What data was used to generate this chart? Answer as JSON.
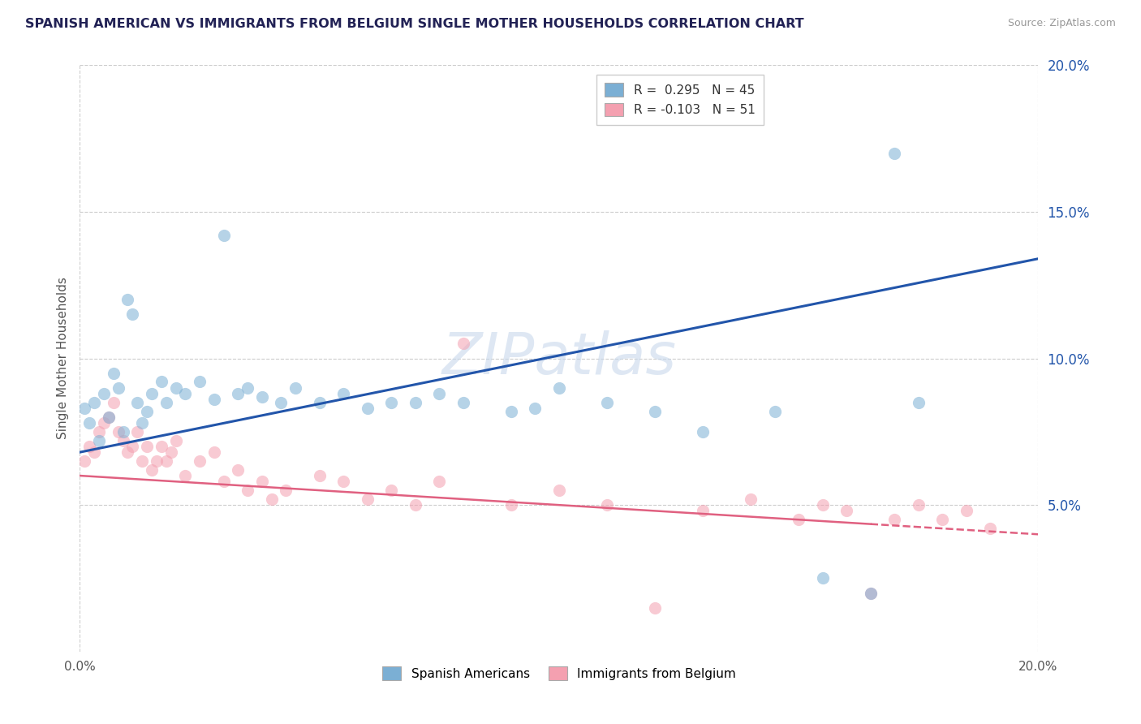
{
  "title": "SPANISH AMERICAN VS IMMIGRANTS FROM BELGIUM SINGLE MOTHER HOUSEHOLDS CORRELATION CHART",
  "source": "Source: ZipAtlas.com",
  "ylabel": "Single Mother Households",
  "watermark": "ZIPatlas",
  "xlim": [
    0.0,
    0.2
  ],
  "ylim": [
    0.0,
    0.2
  ],
  "yticks": [
    0.05,
    0.1,
    0.15,
    0.2
  ],
  "ytick_labels": [
    "5.0%",
    "10.0%",
    "15.0%",
    "20.0%"
  ],
  "xtick_labels": [
    "0.0%",
    "20.0%"
  ],
  "legend_r1": "R =  0.295",
  "legend_n1": "N = 45",
  "legend_r2": "R = -0.103",
  "legend_n2": "N = 51",
  "color_blue": "#7BAFD4",
  "color_pink": "#F4A0B0",
  "color_blue_line": "#2255AA",
  "color_pink_line": "#E06080",
  "blue_line_x0": 0.0,
  "blue_line_y0": 0.068,
  "blue_line_x1": 0.2,
  "blue_line_y1": 0.134,
  "pink_line_x0": 0.0,
  "pink_line_y0": 0.06,
  "pink_line_x1": 0.2,
  "pink_line_y1": 0.04,
  "sa_x": [
    0.001,
    0.002,
    0.003,
    0.004,
    0.005,
    0.006,
    0.007,
    0.008,
    0.009,
    0.01,
    0.011,
    0.012,
    0.013,
    0.014,
    0.015,
    0.017,
    0.018,
    0.02,
    0.022,
    0.025,
    0.028,
    0.03,
    0.033,
    0.035,
    0.038,
    0.042,
    0.045,
    0.05,
    0.055,
    0.06,
    0.065,
    0.07,
    0.075,
    0.08,
    0.09,
    0.095,
    0.1,
    0.11,
    0.12,
    0.13,
    0.145,
    0.155,
    0.165,
    0.17,
    0.175
  ],
  "sa_y": [
    0.083,
    0.078,
    0.085,
    0.072,
    0.088,
    0.08,
    0.095,
    0.09,
    0.075,
    0.12,
    0.115,
    0.085,
    0.078,
    0.082,
    0.088,
    0.092,
    0.085,
    0.09,
    0.088,
    0.092,
    0.086,
    0.142,
    0.088,
    0.09,
    0.087,
    0.085,
    0.09,
    0.085,
    0.088,
    0.083,
    0.085,
    0.085,
    0.088,
    0.085,
    0.082,
    0.083,
    0.09,
    0.085,
    0.082,
    0.075,
    0.082,
    0.025,
    0.02,
    0.17,
    0.085
  ],
  "bel_x": [
    0.001,
    0.002,
    0.003,
    0.004,
    0.005,
    0.006,
    0.007,
    0.008,
    0.009,
    0.01,
    0.011,
    0.012,
    0.013,
    0.014,
    0.015,
    0.016,
    0.017,
    0.018,
    0.019,
    0.02,
    0.022,
    0.025,
    0.028,
    0.03,
    0.033,
    0.035,
    0.038,
    0.04,
    0.043,
    0.05,
    0.055,
    0.06,
    0.065,
    0.07,
    0.075,
    0.08,
    0.09,
    0.1,
    0.11,
    0.12,
    0.13,
    0.14,
    0.15,
    0.155,
    0.16,
    0.165,
    0.17,
    0.175,
    0.18,
    0.185,
    0.19
  ],
  "bel_y": [
    0.065,
    0.07,
    0.068,
    0.075,
    0.078,
    0.08,
    0.085,
    0.075,
    0.072,
    0.068,
    0.07,
    0.075,
    0.065,
    0.07,
    0.062,
    0.065,
    0.07,
    0.065,
    0.068,
    0.072,
    0.06,
    0.065,
    0.068,
    0.058,
    0.062,
    0.055,
    0.058,
    0.052,
    0.055,
    0.06,
    0.058,
    0.052,
    0.055,
    0.05,
    0.058,
    0.105,
    0.05,
    0.055,
    0.05,
    0.015,
    0.048,
    0.052,
    0.045,
    0.05,
    0.048,
    0.02,
    0.045,
    0.05,
    0.045,
    0.048,
    0.042
  ]
}
